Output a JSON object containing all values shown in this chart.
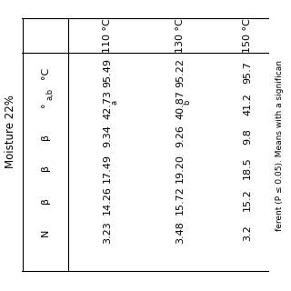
{
  "title": "Moisture 22%",
  "col_headers": [
    "110 °C",
    "130 °C",
    "150 °C"
  ],
  "col110": [
    "95.49",
    "42.73",
    "9.34",
    "17.49",
    "14.26",
    "3.23"
  ],
  "col130": [
    "95.22",
    "40.87",
    "9.26",
    "19.20",
    "15.72",
    "3.48"
  ],
  "col150": [
    "95.7",
    "41.2",
    "9.8",
    "18.5",
    "15.2",
    "3.2"
  ],
  "sup110": [
    "",
    "a",
    "",
    "",
    "",
    ""
  ],
  "sup130": [
    "",
    "b",
    "",
    "",
    "",
    ""
  ],
  "sup150": [
    "",
    "",
    "",
    "",
    "",
    ""
  ],
  "row_labels": [
    "°C",
    "°",
    "β",
    "β",
    "β",
    "N"
  ],
  "row_sups": [
    "",
    "a,b",
    "",
    "",
    "",
    ""
  ],
  "footer": "ferent (P ≤ 0.05). Means with a significan",
  "bg_color": "white",
  "text_color": "#111111"
}
